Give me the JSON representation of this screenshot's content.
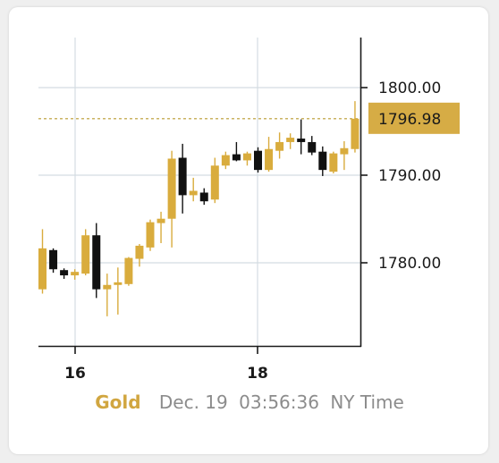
{
  "chart_data": {
    "type": "candlestick",
    "title": "",
    "x_ticks": [
      "16",
      "18"
    ],
    "y_ticks": [
      "1780.00",
      "1790.00",
      "1800.00"
    ],
    "ylim": [
      1770.9,
      1806.3
    ],
    "current_price": "1796.98",
    "current_price_value": 1796.98,
    "grid": true,
    "colors": {
      "up": "#d9ac3d",
      "down": "#111111",
      "price_line": "#b99a2e",
      "price_tag": "#d6ac45",
      "grid": "#d4dce2"
    },
    "candles": [
      {
        "o": 1777.4,
        "h": 1784.3,
        "l": 1776.9,
        "c": 1782.1
      },
      {
        "o": 1781.9,
        "h": 1782.1,
        "l": 1779.3,
        "c": 1779.7
      },
      {
        "o": 1779.6,
        "h": 1779.8,
        "l": 1778.6,
        "c": 1779.0
      },
      {
        "o": 1779.0,
        "h": 1779.7,
        "l": 1778.5,
        "c": 1779.4
      },
      {
        "o": 1779.2,
        "h": 1784.3,
        "l": 1779.0,
        "c": 1783.6
      },
      {
        "o": 1783.6,
        "h": 1785.0,
        "l": 1776.4,
        "c": 1777.4
      },
      {
        "o": 1777.4,
        "h": 1779.2,
        "l": 1774.3,
        "c": 1777.9
      },
      {
        "o": 1777.9,
        "h": 1779.9,
        "l": 1774.5,
        "c": 1778.2
      },
      {
        "o": 1778.0,
        "h": 1781.1,
        "l": 1777.8,
        "c": 1781.0
      },
      {
        "o": 1780.9,
        "h": 1782.6,
        "l": 1780.0,
        "c": 1782.4
      },
      {
        "o": 1782.2,
        "h": 1785.4,
        "l": 1781.8,
        "c": 1785.1
      },
      {
        "o": 1785.0,
        "h": 1786.3,
        "l": 1782.7,
        "c": 1785.5
      },
      {
        "o": 1785.5,
        "h": 1793.3,
        "l": 1782.2,
        "c": 1792.4
      },
      {
        "o": 1792.5,
        "h": 1794.1,
        "l": 1786.1,
        "c": 1788.2
      },
      {
        "o": 1788.2,
        "h": 1790.2,
        "l": 1787.5,
        "c": 1788.7
      },
      {
        "o": 1788.5,
        "h": 1789.0,
        "l": 1787.1,
        "c": 1787.5
      },
      {
        "o": 1787.7,
        "h": 1792.5,
        "l": 1787.3,
        "c": 1791.6
      },
      {
        "o": 1791.6,
        "h": 1793.2,
        "l": 1791.2,
        "c": 1792.8
      },
      {
        "o": 1792.9,
        "h": 1794.3,
        "l": 1792.1,
        "c": 1792.2
      },
      {
        "o": 1792.2,
        "h": 1793.2,
        "l": 1791.6,
        "c": 1793.0
      },
      {
        "o": 1793.3,
        "h": 1793.7,
        "l": 1790.8,
        "c": 1791.1
      },
      {
        "o": 1791.1,
        "h": 1794.9,
        "l": 1790.9,
        "c": 1793.5
      },
      {
        "o": 1793.3,
        "h": 1795.4,
        "l": 1792.4,
        "c": 1794.3
      },
      {
        "o": 1794.3,
        "h": 1795.3,
        "l": 1793.5,
        "c": 1794.8
      },
      {
        "o": 1794.7,
        "h": 1796.9,
        "l": 1792.9,
        "c": 1794.3
      },
      {
        "o": 1794.3,
        "h": 1795.0,
        "l": 1792.8,
        "c": 1793.1
      },
      {
        "o": 1793.2,
        "h": 1793.8,
        "l": 1790.4,
        "c": 1791.1
      },
      {
        "o": 1790.9,
        "h": 1793.2,
        "l": 1790.7,
        "c": 1793.0
      },
      {
        "o": 1792.9,
        "h": 1794.4,
        "l": 1791.1,
        "c": 1793.6
      },
      {
        "o": 1793.5,
        "h": 1799.0,
        "l": 1793.1,
        "c": 1796.98
      }
    ]
  },
  "footer": {
    "metal": "Gold",
    "date": "Dec. 19",
    "time": "03:56:36",
    "zone": "NY Time"
  }
}
